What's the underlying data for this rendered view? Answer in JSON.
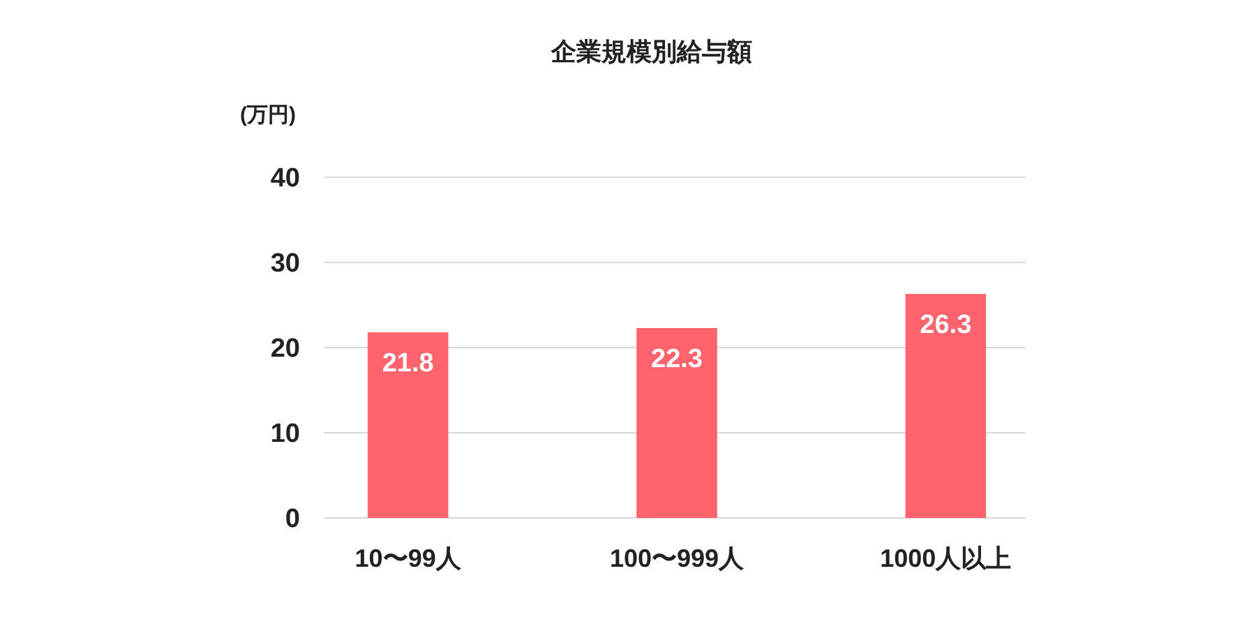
{
  "chart_data": {
    "type": "bar",
    "title": "企業規模別給与額",
    "ylabel": "(万円)",
    "categories": [
      "10〜99人",
      "100〜999人",
      "1000人以上"
    ],
    "values": [
      21.8,
      22.3,
      26.3
    ],
    "color": "#ff646e",
    "ylim": [
      0,
      40
    ],
    "yticks": [
      0,
      10,
      20,
      30,
      40
    ],
    "grid": "y",
    "data_labels": true
  }
}
